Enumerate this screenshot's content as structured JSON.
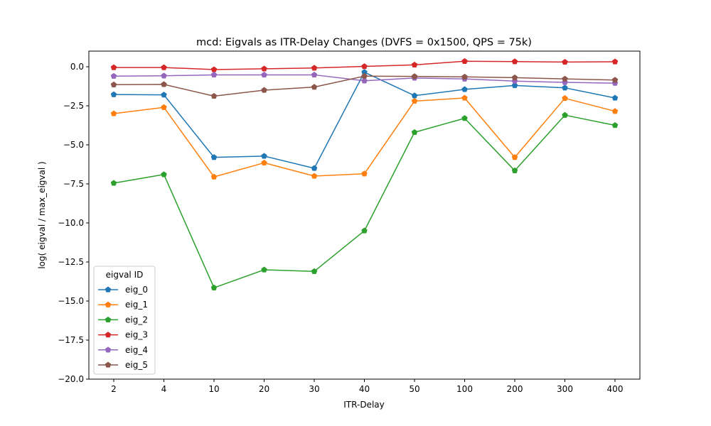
{
  "chart_data": {
    "type": "line",
    "title": "mcd: Eigvals as ITR-Delay Changes (DVFS = 0x1500, QPS = 75k)",
    "xlabel": "ITR-Delay",
    "ylabel": "log( eigval / max_eigval )",
    "categories": [
      "2",
      "4",
      "10",
      "20",
      "30",
      "40",
      "50",
      "100",
      "200",
      "300",
      "400"
    ],
    "ylim": [
      -20.0,
      1.0
    ],
    "yticks": [
      0.0,
      -2.5,
      -5.0,
      -7.5,
      -10.0,
      -12.5,
      -15.0,
      -17.5,
      -20.0
    ],
    "ytick_labels": [
      "0.0",
      "−2.5",
      "−5.0",
      "−7.5",
      "−10.0",
      "−12.5",
      "−15.0",
      "−17.5",
      "−20.0"
    ],
    "grid": false,
    "legend": {
      "title": "eigval ID",
      "placement": "lower-left"
    },
    "series": [
      {
        "name": "eig_0",
        "color": "#1f77b4",
        "values": [
          -1.78,
          -1.8,
          -5.8,
          -5.72,
          -6.5,
          -0.35,
          -1.85,
          -1.45,
          -1.2,
          -1.35,
          -2.0
        ]
      },
      {
        "name": "eig_1",
        "color": "#ff7f0e",
        "values": [
          -3.0,
          -2.6,
          -7.05,
          -6.15,
          -7.0,
          -6.85,
          -2.2,
          -2.0,
          -5.8,
          -2.02,
          -2.85
        ]
      },
      {
        "name": "eig_2",
        "color": "#2ca02c",
        "values": [
          -7.45,
          -6.9,
          -14.15,
          -13.0,
          -13.1,
          -10.5,
          -4.2,
          -3.3,
          -6.65,
          -3.1,
          -3.75
        ]
      },
      {
        "name": "eig_3",
        "color": "#d62728",
        "values": [
          -0.05,
          -0.05,
          -0.18,
          -0.13,
          -0.08,
          0.02,
          0.12,
          0.35,
          0.33,
          0.3,
          0.32
        ]
      },
      {
        "name": "eig_4",
        "color": "#9467bd",
        "values": [
          -0.6,
          -0.58,
          -0.52,
          -0.52,
          -0.52,
          -0.9,
          -0.72,
          -0.78,
          -0.92,
          -1.0,
          -1.05
        ]
      },
      {
        "name": "eig_5",
        "color": "#8c564b",
        "values": [
          -1.15,
          -1.13,
          -1.88,
          -1.5,
          -1.3,
          -0.6,
          -0.62,
          -0.65,
          -0.7,
          -0.78,
          -0.85
        ]
      }
    ]
  }
}
